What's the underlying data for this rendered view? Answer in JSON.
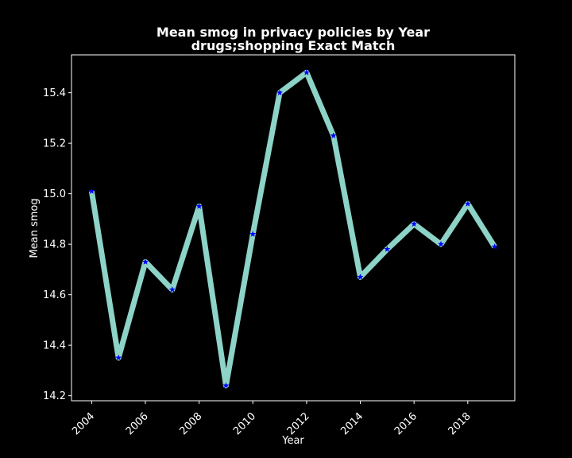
{
  "chart_data": {
    "type": "line",
    "title_line1": "Mean smog in privacy policies by Year",
    "title_line2": "drugs;shopping Exact Match",
    "xlabel": "Year",
    "ylabel": "Mean smog",
    "x": [
      2004,
      2005,
      2006,
      2007,
      2008,
      2009,
      2010,
      2011,
      2012,
      2013,
      2014,
      2015,
      2016,
      2017,
      2018,
      2019
    ],
    "values": [
      15.01,
      14.35,
      14.73,
      14.62,
      14.95,
      14.24,
      14.84,
      15.4,
      15.48,
      15.23,
      14.67,
      14.78,
      14.88,
      14.8,
      14.96,
      14.79
    ],
    "xticks": [
      2004,
      2006,
      2008,
      2010,
      2012,
      2014,
      2016,
      2018
    ],
    "yticks": [
      14.2,
      14.4,
      14.6,
      14.8,
      15.0,
      15.2,
      15.4
    ],
    "xlim": [
      2003.25,
      2019.75
    ],
    "ylim": [
      14.18,
      15.55
    ],
    "grid": false,
    "line_color": "#8dd3c7",
    "marker_color": "#0000ff",
    "background": "#000000",
    "axes_color": "#ffffff"
  }
}
